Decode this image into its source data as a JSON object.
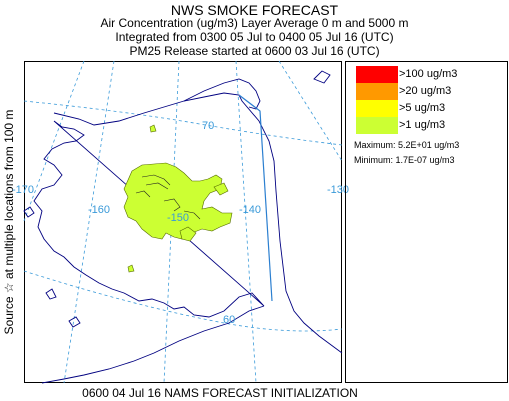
{
  "header": {
    "title": "NWS SMOKE FORECAST",
    "line2": "Air Concentration (ug/m3) Layer Average    0 m  and  5000 m",
    "line3": "Integrated from 0300 05 Jul to 0400 05 Jul 16 (UTC)",
    "line4": "PM25 Release started at 0600 03 Jul 16 (UTC)"
  },
  "side_label": "Source ☆ at multiple locations   from   100 m",
  "footer": "0600 04 Jul 16 NAMS FORECAST INITIALIZATION",
  "map": {
    "longitude_labels": [
      "-170",
      "-160",
      "-150",
      "-140",
      "-130"
    ],
    "latitude_labels": [
      "70",
      "60"
    ],
    "colors": {
      "coast": "#000080",
      "graticule": "#3a9ad9",
      "border": "#2b7fd0",
      "plume": "#ccff33"
    }
  },
  "legend": {
    "items": [
      {
        "label": ">100 ug/m3",
        "color": "#ff0000"
      },
      {
        "label": ">20 ug/m3",
        "color": "#ff9900"
      },
      {
        "label": ">5 ug/m3",
        "color": "#ffff00"
      },
      {
        "label": ">1 ug/m3",
        "color": "#ccff33"
      }
    ],
    "maximum": "Maximum: 5.2E+01 ug/m3",
    "minimum": "Minimum: 1.7E-07 ug/m3"
  }
}
